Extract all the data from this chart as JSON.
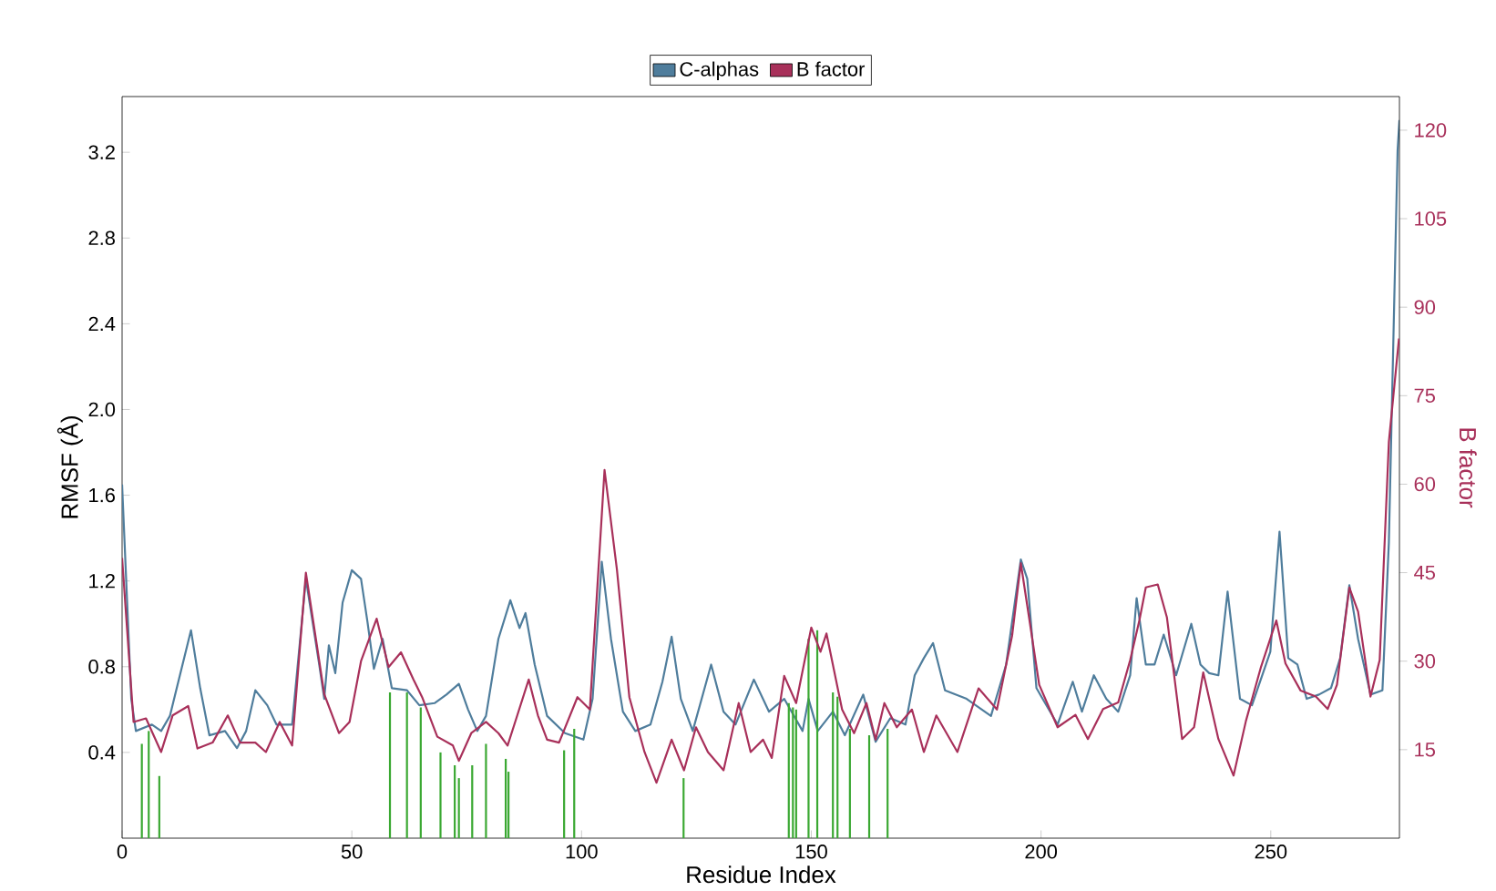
{
  "chart_data": {
    "type": "line",
    "xlabel": "Residue Index",
    "ylabel": "RMSF (Å)",
    "y2label": "B factor",
    "xlim": [
      0,
      278
    ],
    "xticks": [
      0,
      50,
      100,
      150,
      200,
      250
    ],
    "ylim": [
      0,
      3.46
    ],
    "yticks": [
      0.4,
      0.8,
      1.2,
      1.6,
      {
        "value": 2.0,
        "label": "2.0"
      },
      2.4,
      2.8,
      3.2
    ],
    "y2lim": [
      0,
      125.7
    ],
    "y2ticks": [
      15,
      30,
      45,
      60,
      75,
      90,
      105,
      120
    ],
    "legend": "top",
    "grid": false,
    "series": [
      {
        "name": "C-alphas",
        "color": "#4f7d9c",
        "axis": "y",
        "x": [
          0,
          2,
          3,
          6.5,
          8.5,
          10.4,
          15,
          17,
          19,
          22.4,
          25,
          27,
          29,
          31.6,
          33.6,
          37,
          40,
          42.9,
          44,
          45,
          46.4,
          48,
          50,
          52,
          53.4,
          54.8,
          56.7,
          58.7,
          62,
          64.7,
          68,
          70.6,
          73.3,
          75.3,
          77.3,
          79.2,
          81.9,
          84.5,
          86.5,
          87.8,
          89.8,
          92.5,
          96.4,
          100.4,
          102.4,
          104.4,
          106.4,
          109,
          111.7,
          115,
          117.6,
          119.6,
          121.6,
          124.2,
          128.2,
          130.9,
          133.5,
          137.5,
          140.8,
          144.1,
          148.1,
          149.4,
          151.4,
          154.7,
          157.3,
          161.3,
          164,
          167.2,
          170.5,
          172.5,
          174.5,
          176.5,
          179.1,
          183.8,
          189.1,
          192.4,
          195.6,
          197,
          199,
          203.6,
          206.9,
          208.9,
          211.5,
          214.2,
          216.8,
          219.4,
          220.8,
          222.8,
          224.7,
          226.7,
          229.4,
          232.7,
          234.7,
          236.6,
          238.6,
          240.6,
          243.3,
          245.9,
          249.9,
          251.9,
          253.8,
          255.8,
          257.8,
          260.5,
          263.1,
          265.1,
          267.1,
          269,
          271.7,
          274.3,
          275.7,
          277.6,
          278
        ],
        "values": [
          1.65,
          0.65,
          0.5,
          0.53,
          0.5,
          0.57,
          0.97,
          0.7,
          0.48,
          0.5,
          0.42,
          0.5,
          0.69,
          0.62,
          0.53,
          0.53,
          1.21,
          0.81,
          0.65,
          0.9,
          0.77,
          1.1,
          1.25,
          1.21,
          1.01,
          0.79,
          0.93,
          0.7,
          0.69,
          0.62,
          0.63,
          0.67,
          0.72,
          0.6,
          0.5,
          0.57,
          0.93,
          1.11,
          0.98,
          1.05,
          0.81,
          0.57,
          0.49,
          0.46,
          0.65,
          1.29,
          0.93,
          0.59,
          0.5,
          0.53,
          0.73,
          0.94,
          0.65,
          0.5,
          0.81,
          0.59,
          0.53,
          0.74,
          0.59,
          0.65,
          0.5,
          0.65,
          0.5,
          0.59,
          0.48,
          0.67,
          0.45,
          0.56,
          0.53,
          0.76,
          0.84,
          0.91,
          0.69,
          0.65,
          0.57,
          0.81,
          1.3,
          1.21,
          0.7,
          0.53,
          0.73,
          0.59,
          0.76,
          0.65,
          0.59,
          0.76,
          1.12,
          0.81,
          0.81,
          0.95,
          0.76,
          1.0,
          0.81,
          0.77,
          0.76,
          1.15,
          0.65,
          0.62,
          0.87,
          1.43,
          0.84,
          0.81,
          0.65,
          0.67,
          0.7,
          0.84,
          1.18,
          0.93,
          0.67,
          0.69,
          1.38,
          3.21,
          3.35
        ]
      },
      {
        "name": "B factor",
        "color": "#a8305a",
        "axis": "y2",
        "x": [
          0,
          2.5,
          5.2,
          8.5,
          11,
          14.4,
          16.4,
          19.7,
          23,
          25.7,
          29,
          31.3,
          34.3,
          37,
          40,
          44,
          47.2,
          49.5,
          52,
          55.4,
          58,
          60.7,
          63.4,
          65.3,
          68.6,
          72,
          73.3,
          76,
          79.2,
          81.9,
          83.9,
          85.8,
          88.5,
          90.5,
          92.5,
          95.1,
          99.1,
          101.8,
          105,
          107.7,
          110.4,
          113.7,
          116.3,
          119.6,
          122.3,
          124.9,
          127.5,
          130.9,
          134.2,
          136.8,
          139.5,
          141.4,
          144.1,
          146.7,
          150,
          152,
          153.3,
          156.7,
          159.3,
          162,
          164,
          165.9,
          168.6,
          171.9,
          174.5,
          177.2,
          181.8,
          186.4,
          190.4,
          193.7,
          195.6,
          197.6,
          199.6,
          203.6,
          207.5,
          210.2,
          213.5,
          216.8,
          219.4,
          221.4,
          222.8,
          225.4,
          227.4,
          230.7,
          233.3,
          235.3,
          238.6,
          241.9,
          244.6,
          247.9,
          251.2,
          253.2,
          256.5,
          259.8,
          262.4,
          264.4,
          267.1,
          269,
          271.7,
          273.7,
          275.7,
          277.9
        ],
        "values": [
          47.5,
          19.7,
          20.3,
          14.6,
          20.8,
          22.4,
          15.2,
          16.2,
          20.8,
          16.2,
          16.2,
          14.6,
          19.7,
          15.7,
          45,
          24.4,
          17.8,
          19.7,
          30,
          37.2,
          29,
          31.5,
          26.9,
          23.9,
          17.2,
          15.7,
          13.1,
          17.8,
          19.7,
          17.8,
          15.7,
          20.3,
          26.9,
          20.8,
          16.7,
          16.2,
          23.9,
          21.8,
          62.4,
          45.5,
          23.9,
          14.6,
          9.4,
          16.7,
          11.5,
          18.8,
          14.6,
          11.5,
          22.9,
          14.6,
          16.7,
          13.6,
          27.5,
          22.9,
          35.7,
          31.6,
          34.7,
          21.8,
          17.8,
          22.9,
          16.7,
          22.9,
          18.8,
          21.8,
          14.6,
          20.8,
          14.6,
          25.4,
          21.8,
          34.3,
          46.6,
          36.3,
          26,
          18.8,
          20.9,
          16.8,
          21.9,
          23,
          30.2,
          36.9,
          42.5,
          43,
          37.4,
          16.8,
          18.8,
          28.1,
          16.8,
          10.6,
          19.9,
          29.1,
          36.9,
          29.6,
          25,
          24,
          21.9,
          26,
          42.5,
          38.4,
          24,
          30.2,
          67.2,
          84.7
        ]
      },
      {
        "color": "#3aa832",
        "type": "bar",
        "axis": "y",
        "x": [
          4.3,
          5.8,
          8.1,
          58.3,
          62,
          65,
          69.3,
          72.4,
          73.3,
          76.2,
          79.2,
          83.5,
          84.1,
          96.2,
          98.4,
          122.2,
          145.1,
          146,
          146.7,
          149.4,
          151.3,
          154.7,
          155.7,
          158.4,
          162.6,
          166.6
        ],
        "values": [
          0.44,
          0.5,
          0.29,
          0.68,
          0.68,
          0.61,
          0.4,
          0.34,
          0.28,
          0.34,
          0.44,
          0.37,
          0.31,
          0.41,
          0.51,
          0.28,
          0.63,
          0.61,
          0.6,
          0.93,
          0.97,
          0.68,
          0.66,
          0.51,
          0.48,
          0.51
        ]
      }
    ]
  }
}
